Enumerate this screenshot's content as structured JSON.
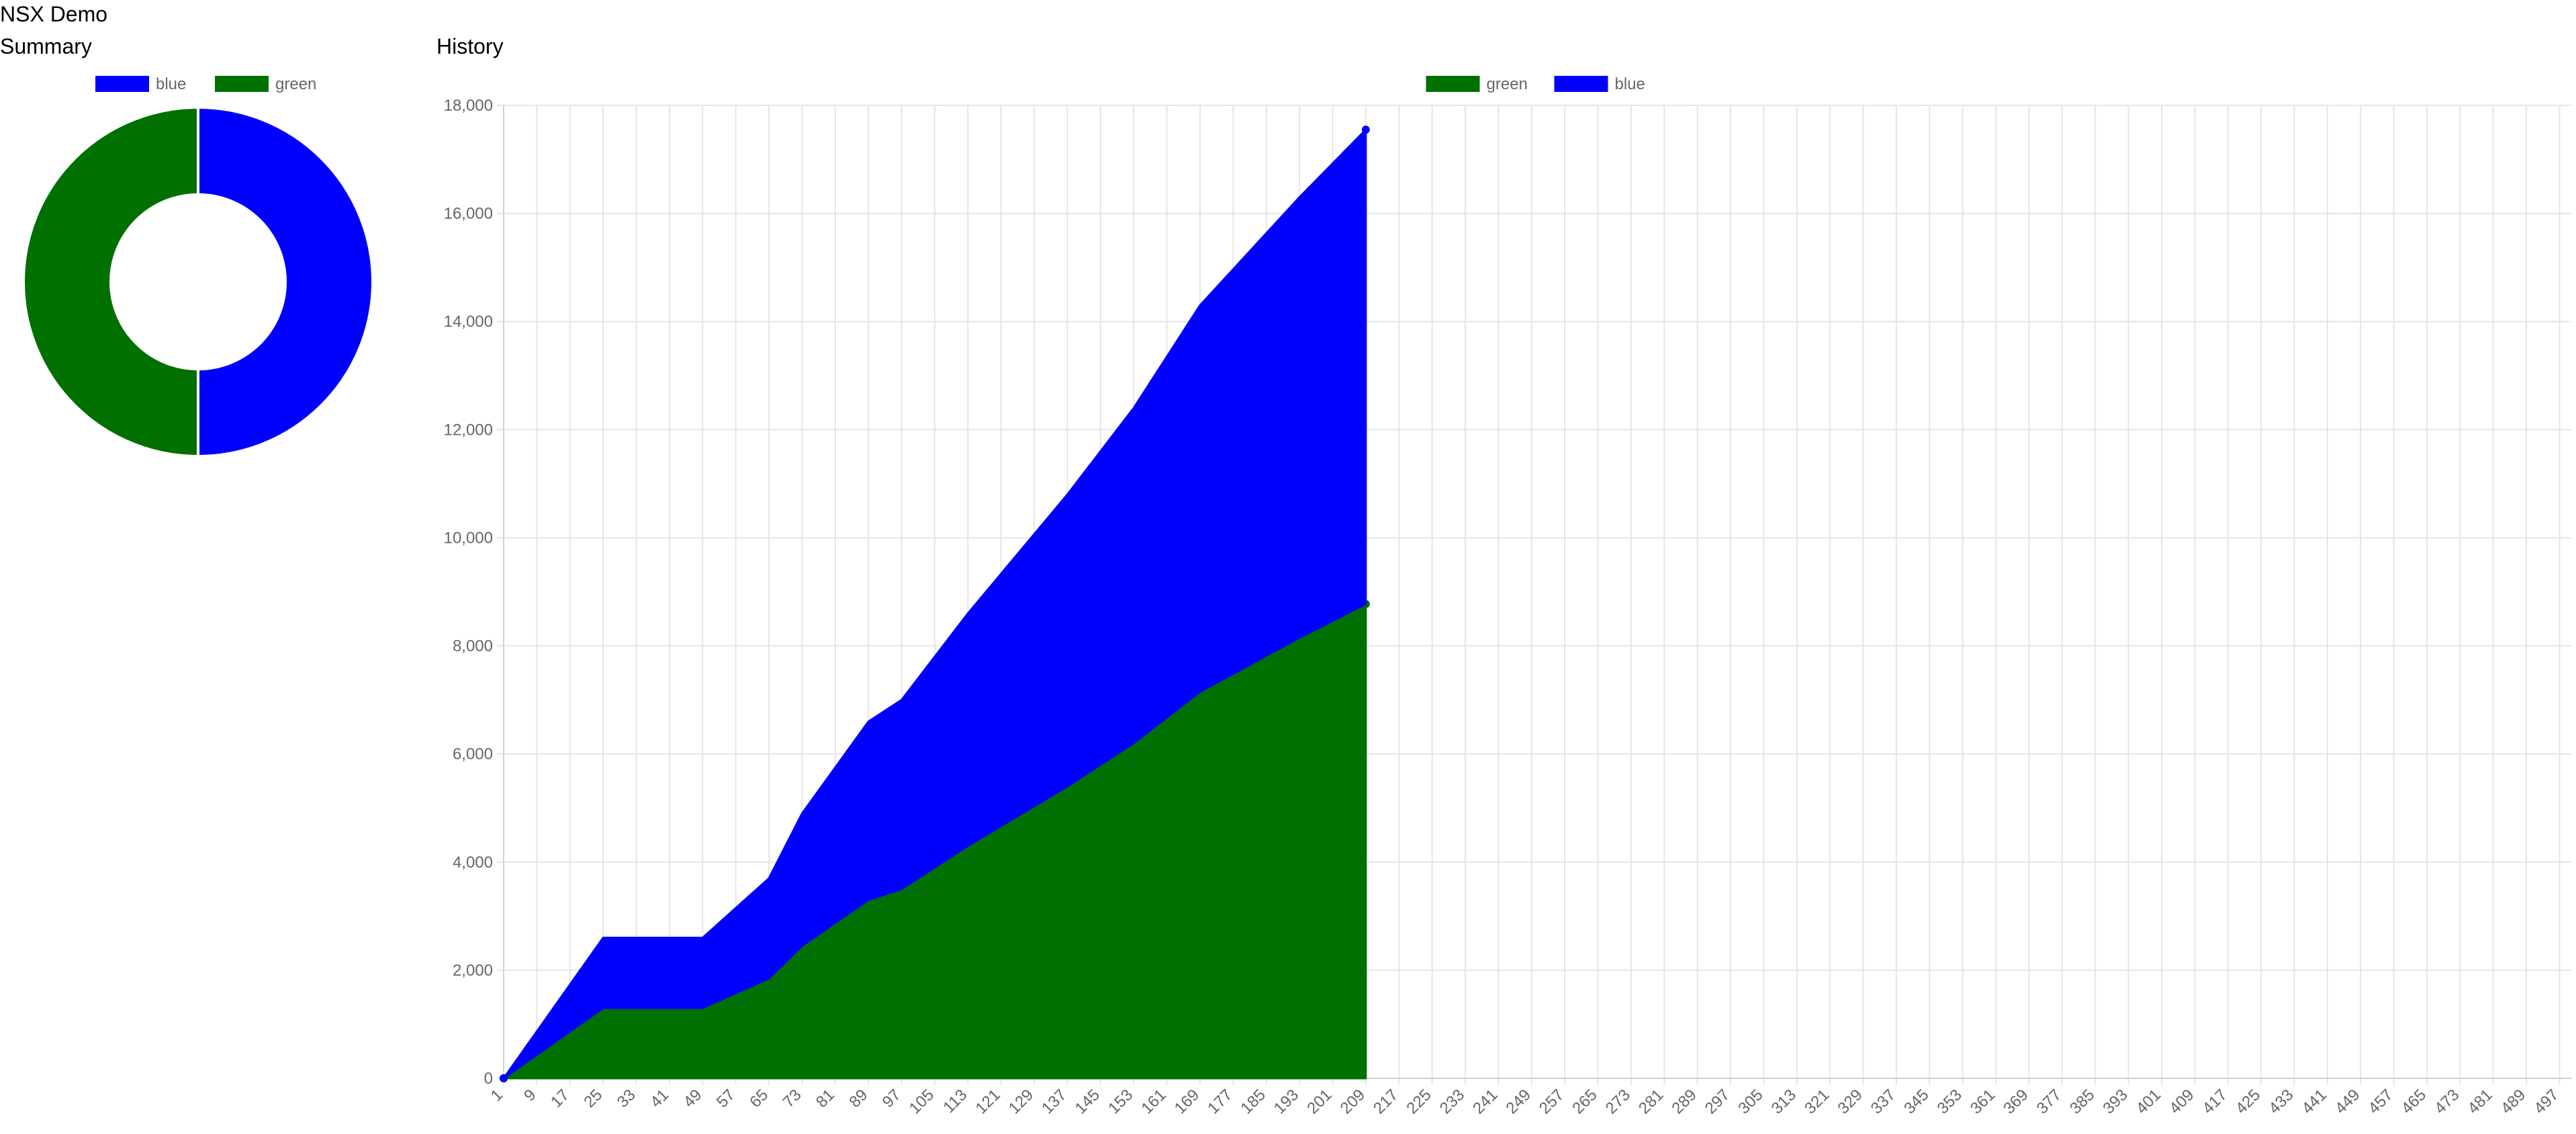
{
  "app": {
    "title": "NSX Demo"
  },
  "summary": {
    "title": "Summary"
  },
  "history": {
    "title": "History"
  },
  "colors": {
    "blue": "#0000ff",
    "green": "#007000",
    "grid": "#e5e5e5",
    "tick_text": "#666666"
  },
  "chart_data": [
    {
      "type": "pie",
      "variant": "doughnut",
      "legend": {
        "position": "top"
      },
      "labels": [
        "blue",
        "green"
      ],
      "values": [
        8775,
        8775
      ],
      "colors": [
        "#0000ff",
        "#007000"
      ]
    },
    {
      "type": "area",
      "stacked": true,
      "grid": true,
      "legend": {
        "position": "top"
      },
      "x": {
        "min": 1,
        "max": 500,
        "tick_start": 1,
        "tick_step": 8
      },
      "ylim": [
        0,
        18000
      ],
      "yticks": [
        0,
        2000,
        4000,
        6000,
        8000,
        10000,
        12000,
        14000,
        16000,
        18000
      ],
      "data_extent": {
        "first_x": 1,
        "last_x": 209
      },
      "series": [
        {
          "name": "green",
          "color": "#007000",
          "points": [
            [
              1,
              0
            ],
            [
              25,
              1300
            ],
            [
              49,
              1300
            ],
            [
              65,
              1850
            ],
            [
              73,
              2450
            ],
            [
              89,
              3300
            ],
            [
              97,
              3500
            ],
            [
              113,
              4300
            ],
            [
              137,
              5400
            ],
            [
              153,
              6200
            ],
            [
              169,
              7150
            ],
            [
              193,
              8150
            ],
            [
              209,
              8775
            ]
          ]
        },
        {
          "name": "blue",
          "color": "#0000ff",
          "points": [
            [
              1,
              0
            ],
            [
              25,
              1300
            ],
            [
              49,
              1300
            ],
            [
              65,
              1850
            ],
            [
              73,
              2450
            ],
            [
              89,
              3300
            ],
            [
              97,
              3500
            ],
            [
              113,
              4300
            ],
            [
              137,
              5400
            ],
            [
              153,
              6200
            ],
            [
              169,
              7150
            ],
            [
              193,
              8150
            ],
            [
              209,
              8775
            ]
          ]
        }
      ]
    }
  ]
}
